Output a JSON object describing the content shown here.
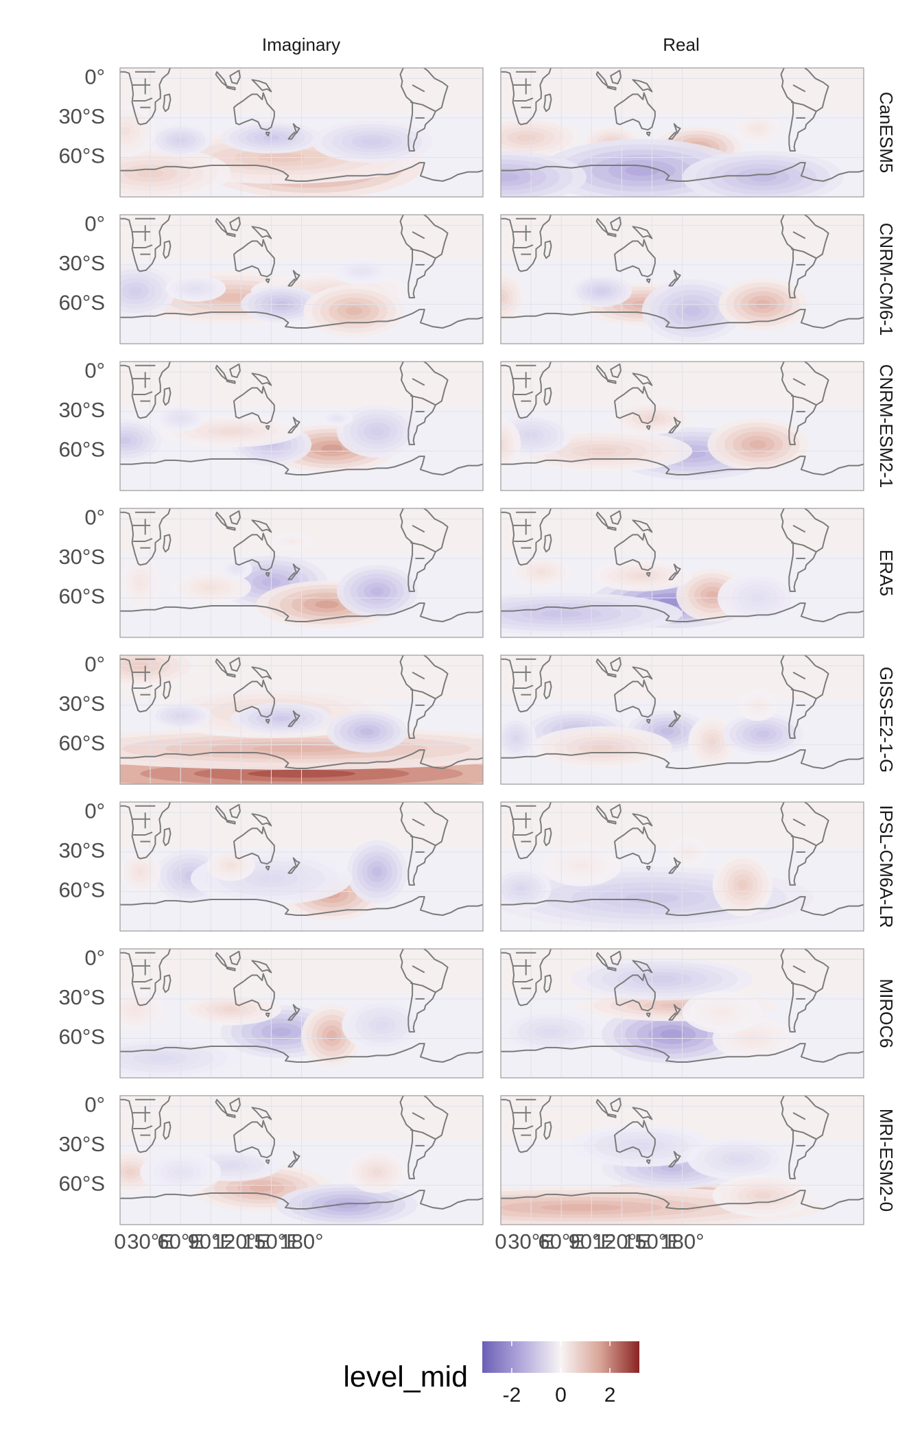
{
  "chart_data": {
    "type": "heatmap",
    "subtype": "faceted filled-contour map",
    "columns": [
      "Imaginary",
      "Real"
    ],
    "rows": [
      "CanESM5",
      "CNRM-CM6-1",
      "CNRM-ESM2-1",
      "ERA5",
      "GISS-E2-1-G",
      "IPSL-CM6A-LR",
      "MIROC6",
      "MRI-ESM2-0"
    ],
    "y_ticks": [
      "0°",
      "30°S",
      "60°S"
    ],
    "x_ticks": [
      "0",
      "30°E",
      "60°E",
      "90°E",
      "120°E",
      "150°E",
      "180°"
    ],
    "x_tick_values": [
      0,
      30,
      60,
      90,
      120,
      150,
      180
    ],
    "y_tick_values": [
      0,
      -30,
      -60
    ],
    "lon_range": [
      0,
      360
    ],
    "lat_range": [
      -90,
      8
    ],
    "legend": {
      "title": "level_mid",
      "ticks": [
        "-2",
        "0",
        "2"
      ],
      "tick_values": [
        -2,
        0,
        2
      ],
      "range": [
        -3.2,
        3.2
      ],
      "position": "bottom",
      "colors": [
        "#6b5fb5",
        "#a59ad4",
        "#d8d3ec",
        "#f3f1f8",
        "#f7eeeb",
        "#e6c0b6",
        "#c98677",
        "#8a2424"
      ]
    },
    "grid": true,
    "panels": [
      {
        "row": "CanESM5",
        "col": "Imaginary",
        "anomalies": [
          [
            190,
            -67,
            2.2,
            55,
            12
          ],
          [
            160,
            -60,
            1.0,
            70,
            10
          ],
          [
            30,
            -72,
            0.8,
            40,
            10
          ],
          [
            150,
            -45,
            -0.9,
            25,
            6
          ],
          [
            250,
            -48,
            -0.8,
            30,
            8
          ],
          [
            60,
            -47,
            -0.7,
            15,
            6
          ],
          [
            5,
            -40,
            0.5,
            15,
            10
          ]
        ]
      },
      {
        "row": "CanESM5",
        "col": "Real",
        "anomalies": [
          [
            25,
            -45,
            0.8,
            28,
            8
          ],
          [
            110,
            -48,
            0.8,
            15,
            6
          ],
          [
            195,
            -53,
            1.6,
            22,
            8
          ],
          [
            140,
            -70,
            -1.6,
            50,
            12
          ],
          [
            5,
            -75,
            -1.3,
            40,
            10
          ],
          [
            260,
            -75,
            -1.2,
            40,
            10
          ],
          [
            255,
            -38,
            0.4,
            12,
            6
          ]
        ]
      },
      {
        "row": "CNRM-CM6-1",
        "col": "Imaginary",
        "anomalies": [
          [
            110,
            -55,
            1.2,
            50,
            10
          ],
          [
            210,
            -50,
            0.6,
            40,
            7
          ],
          [
            15,
            -50,
            -0.8,
            20,
            10
          ],
          [
            160,
            -60,
            -1.1,
            20,
            7
          ],
          [
            232,
            -65,
            1.3,
            25,
            10
          ],
          [
            240,
            -35,
            -0.3,
            15,
            5
          ],
          [
            75,
            -48,
            -0.4,
            15,
            5
          ]
        ]
      },
      {
        "row": "CNRM-CM6-1",
        "col": "Real",
        "anomalies": [
          [
            140,
            -60,
            1.4,
            30,
            8
          ],
          [
            100,
            -50,
            -0.8,
            15,
            6
          ],
          [
            190,
            -65,
            -1.1,
            25,
            12
          ],
          [
            260,
            -60,
            1.4,
            22,
            10
          ],
          [
            0,
            -55,
            0.8,
            12,
            10
          ]
        ]
      },
      {
        "row": "CNRM-ESM2-1",
        "col": "Imaginary",
        "anomalies": [
          [
            210,
            -58,
            1.8,
            32,
            9
          ],
          [
            150,
            -55,
            -1.0,
            20,
            8
          ],
          [
            110,
            -45,
            0.6,
            35,
            6
          ],
          [
            5,
            -52,
            -0.9,
            18,
            8
          ],
          [
            255,
            -45,
            -0.8,
            20,
            10
          ],
          [
            60,
            -35,
            -0.4,
            12,
            5
          ],
          [
            215,
            -35,
            -0.3,
            8,
            3
          ]
        ]
      },
      {
        "row": "CNRM-ESM2-1",
        "col": "Real",
        "anomalies": [
          [
            190,
            -62,
            -1.4,
            40,
            10
          ],
          [
            150,
            -35,
            0.7,
            20,
            6
          ],
          [
            255,
            -55,
            1.4,
            25,
            10
          ],
          [
            100,
            -60,
            0.8,
            45,
            8
          ],
          [
            30,
            -48,
            -0.6,
            20,
            8
          ],
          [
            0,
            -55,
            0.6,
            10,
            10
          ]
        ]
      },
      {
        "row": "ERA5",
        "col": "Imaginary",
        "anomalies": [
          [
            150,
            -48,
            -1.3,
            28,
            10
          ],
          [
            205,
            -65,
            1.7,
            35,
            9
          ],
          [
            255,
            -55,
            -1.3,
            20,
            10
          ],
          [
            90,
            -52,
            0.5,
            20,
            6
          ],
          [
            20,
            -48,
            0.4,
            10,
            10
          ],
          [
            170,
            -17,
            0.3,
            10,
            3
          ],
          [
            115,
            -38,
            -0.3,
            8,
            4
          ]
        ]
      },
      {
        "row": "ERA5",
        "col": "Real",
        "anomalies": [
          [
            170,
            -63,
            -2.2,
            40,
            10
          ],
          [
            60,
            -72,
            -1.0,
            60,
            8
          ],
          [
            210,
            -58,
            1.4,
            18,
            10
          ],
          [
            140,
            -43,
            0.6,
            25,
            6
          ],
          [
            40,
            -40,
            0.5,
            15,
            6
          ],
          [
            255,
            -60,
            -0.4,
            20,
            10
          ]
        ]
      },
      {
        "row": "GISS-E2-1-G",
        "col": "Imaginary",
        "anomalies": [
          [
            180,
            -82,
            3.0,
            160,
            9
          ],
          [
            175,
            -63,
            1.4,
            130,
            8
          ],
          [
            150,
            -35,
            0.7,
            60,
            10
          ],
          [
            20,
            0,
            0.9,
            30,
            8
          ],
          [
            160,
            -40,
            -0.9,
            25,
            6
          ],
          [
            245,
            -50,
            -1.2,
            20,
            8
          ],
          [
            60,
            -38,
            -0.6,
            15,
            5
          ]
        ]
      },
      {
        "row": "GISS-E2-1-G",
        "col": "Real",
        "anomalies": [
          [
            75,
            -50,
            -1.1,
            25,
            8
          ],
          [
            165,
            -50,
            -1.2,
            20,
            8
          ],
          [
            100,
            -62,
            0.8,
            35,
            8
          ],
          [
            210,
            -58,
            0.7,
            12,
            10
          ],
          [
            260,
            -52,
            -1.0,
            20,
            8
          ],
          [
            15,
            -55,
            -0.6,
            10,
            8
          ],
          [
            255,
            -30,
            0.3,
            10,
            6
          ]
        ]
      },
      {
        "row": "IPSL-CM6A-LR",
        "col": "Imaginary",
        "anomalies": [
          [
            210,
            -62,
            1.6,
            25,
            10
          ],
          [
            255,
            -45,
            -1.2,
            15,
            12
          ],
          [
            70,
            -48,
            -0.9,
            18,
            10
          ],
          [
            150,
            -50,
            -0.5,
            40,
            10
          ],
          [
            110,
            -40,
            0.5,
            12,
            6
          ],
          [
            20,
            -45,
            0.5,
            10,
            8
          ]
        ]
      },
      {
        "row": "IPSL-CM6A-LR",
        "col": "Real",
        "anomalies": [
          [
            150,
            -65,
            -0.9,
            80,
            12
          ],
          [
            240,
            -55,
            0.9,
            15,
            12
          ],
          [
            20,
            -58,
            -0.6,
            15,
            8
          ],
          [
            80,
            -40,
            0.3,
            20,
            8
          ],
          [
            185,
            -30,
            0.3,
            10,
            6
          ]
        ]
      },
      {
        "row": "MIROC6",
        "col": "Imaginary",
        "anomalies": [
          [
            160,
            -55,
            -1.5,
            30,
            10
          ],
          [
            210,
            -58,
            1.4,
            15,
            12
          ],
          [
            110,
            -38,
            0.7,
            25,
            6
          ],
          [
            40,
            -75,
            -0.5,
            40,
            8
          ],
          [
            260,
            -50,
            -0.5,
            20,
            10
          ],
          [
            15,
            -38,
            0.4,
            15,
            8
          ]
        ]
      },
      {
        "row": "MIROC6",
        "col": "Real",
        "anomalies": [
          [
            170,
            -57,
            -1.9,
            35,
            11
          ],
          [
            175,
            -35,
            1.1,
            50,
            6
          ],
          [
            160,
            -15,
            -0.8,
            45,
            8
          ],
          [
            50,
            -55,
            -0.5,
            25,
            8
          ],
          [
            250,
            -60,
            0.4,
            20,
            8
          ],
          [
            220,
            -40,
            0.3,
            20,
            8
          ]
        ]
      },
      {
        "row": "MRI-ESM2-0",
        "col": "Imaginary",
        "anomalies": [
          [
            140,
            -62,
            1.4,
            35,
            9
          ],
          [
            225,
            -75,
            -1.5,
            35,
            8
          ],
          [
            10,
            -50,
            0.8,
            15,
            8
          ],
          [
            255,
            -50,
            0.6,
            15,
            8
          ],
          [
            110,
            -45,
            -0.5,
            25,
            6
          ],
          [
            60,
            -50,
            -0.3,
            20,
            8
          ]
        ]
      },
      {
        "row": "MRI-ESM2-0",
        "col": "Real",
        "anomalies": [
          [
            170,
            -75,
            3.1,
            50,
            9
          ],
          [
            80,
            -77,
            1.4,
            120,
            8
          ],
          [
            170,
            -47,
            -1.2,
            35,
            8
          ],
          [
            140,
            -30,
            -0.5,
            35,
            8
          ],
          [
            235,
            -40,
            -0.5,
            25,
            8
          ],
          [
            260,
            -68,
            0.7,
            25,
            8
          ]
        ]
      }
    ]
  }
}
